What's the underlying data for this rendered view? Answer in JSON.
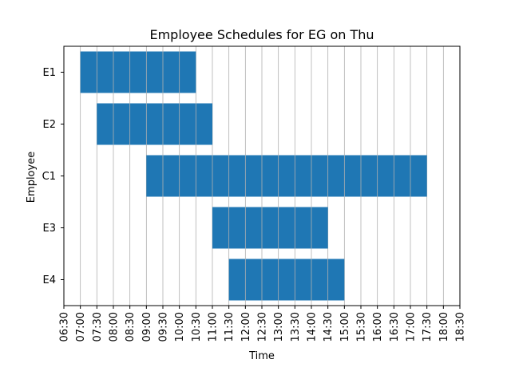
{
  "chart_data": {
    "type": "gantt",
    "title": "Employee Schedules for EG on Thu",
    "xlabel": "Time",
    "ylabel": "Employee",
    "x_ticks": [
      "06:30",
      "07:00",
      "07:30",
      "08:00",
      "08:30",
      "09:00",
      "09:30",
      "10:00",
      "10:30",
      "11:00",
      "11:30",
      "12:00",
      "12:30",
      "13:00",
      "13:30",
      "14:00",
      "14:30",
      "15:00",
      "15:30",
      "16:00",
      "16:30",
      "17:00",
      "17:30",
      "18:00",
      "18:30"
    ],
    "x_range": [
      "06:30",
      "18:30"
    ],
    "grid": "vertical",
    "bar_color": "#1f77b4",
    "bars": [
      {
        "employee": "E1",
        "start": "07:00",
        "end": "10:30"
      },
      {
        "employee": "E2",
        "start": "07:30",
        "end": "11:00"
      },
      {
        "employee": "C1",
        "start": "09:00",
        "end": "17:30"
      },
      {
        "employee": "E3",
        "start": "11:00",
        "end": "14:30"
      },
      {
        "employee": "E4",
        "start": "11:30",
        "end": "15:00"
      }
    ]
  }
}
